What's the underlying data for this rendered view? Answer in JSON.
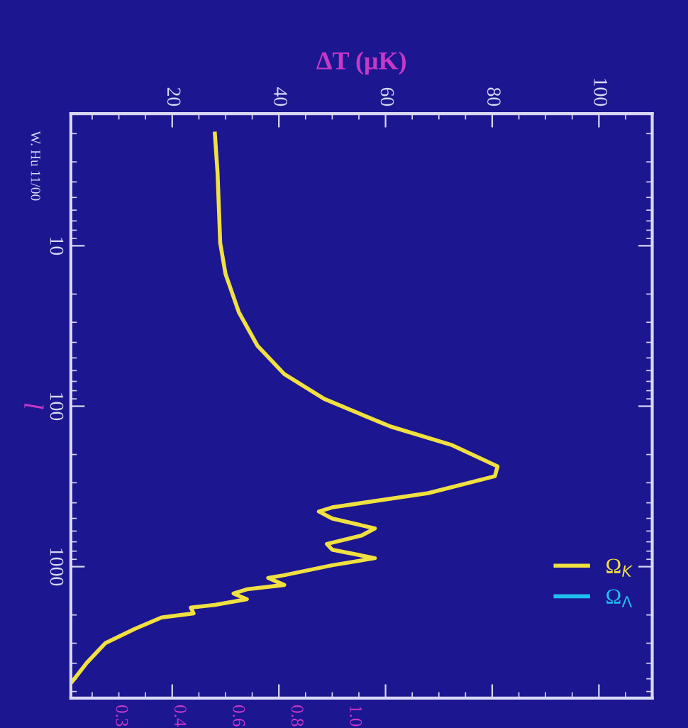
{
  "chart_data": {
    "type": "line",
    "xlabel": "ΔT (μK)",
    "ylabel": "l",
    "xlim": [
      1,
      110
    ],
    "xticks": [
      20,
      40,
      60,
      80,
      100
    ],
    "ylim": [
      6600,
      1.5
    ],
    "yticks": [
      10,
      100,
      1000
    ],
    "log": "y",
    "grid": false,
    "legend": "bottom right",
    "marker": "none",
    "line_style": "solid",
    "annotations": [
      "W. Hu 11/00",
      "0.3",
      "0.4",
      "0.6",
      "0.8",
      "1.0"
    ],
    "series": [
      {
        "name": "Ω$_{K}$",
        "color": "#f0e040",
        "x": [
          28,
          28.5,
          29,
          30,
          32.5,
          36,
          41,
          48.5,
          59,
          61,
          72.5,
          81,
          80.5,
          68,
          50,
          47.5,
          50,
          58,
          55.5,
          49,
          50,
          58,
          50,
          41,
          38,
          41,
          34,
          31.5,
          34,
          28,
          23.5,
          24,
          18,
          13,
          7.5,
          4,
          1.3
        ],
        "values": [
          2,
          3.5,
          9.6,
          15,
          26,
          42,
          63,
          90,
          126,
          134,
          175,
          237,
          273,
          348,
          427,
          453,
          501,
          578,
          640,
          722,
          784,
          885,
          980,
          1130,
          1175,
          1300,
          1385,
          1470,
          1595,
          1730,
          1800,
          1955,
          2075,
          2440,
          2990,
          3970,
          5180
        ]
      },
      {
        "name": "Ω$_{Λ}$",
        "color": "#20c0f0"
      }
    ]
  }
}
